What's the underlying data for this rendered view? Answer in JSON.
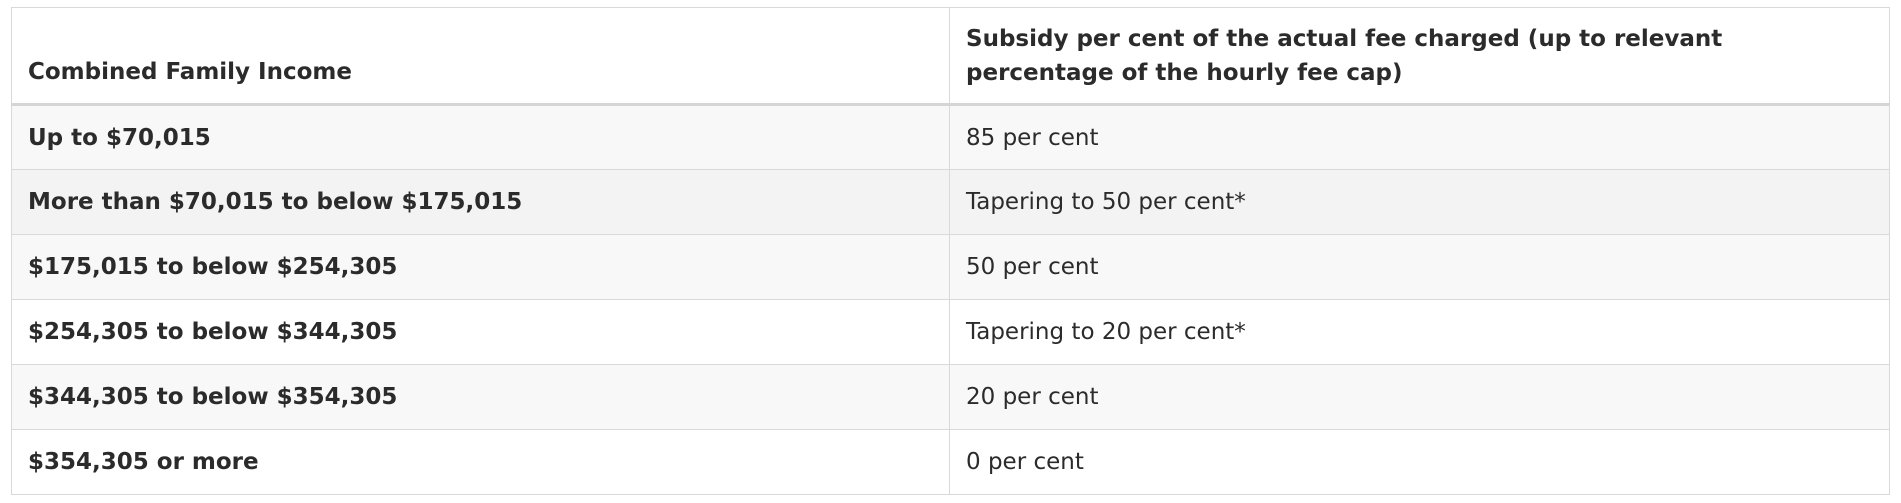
{
  "table": {
    "headers": [
      "Combined Family Income",
      "Subsidy per cent of the actual fee charged (up to relevant percentage of the hourly fee cap)"
    ],
    "rows": [
      [
        "Up to $70,015",
        "85 per cent"
      ],
      [
        "More than $70,015 to below $175,015",
        "Tapering to 50 per cent*"
      ],
      [
        "$175,015 to below $254,305",
        "50 per cent"
      ],
      [
        "$254,305 to below $344,305",
        "Tapering to 20 per cent*"
      ],
      [
        "$344,305 to below $354,305",
        "20 per cent"
      ],
      [
        "$354,305 or more",
        "0 per cent"
      ]
    ]
  }
}
